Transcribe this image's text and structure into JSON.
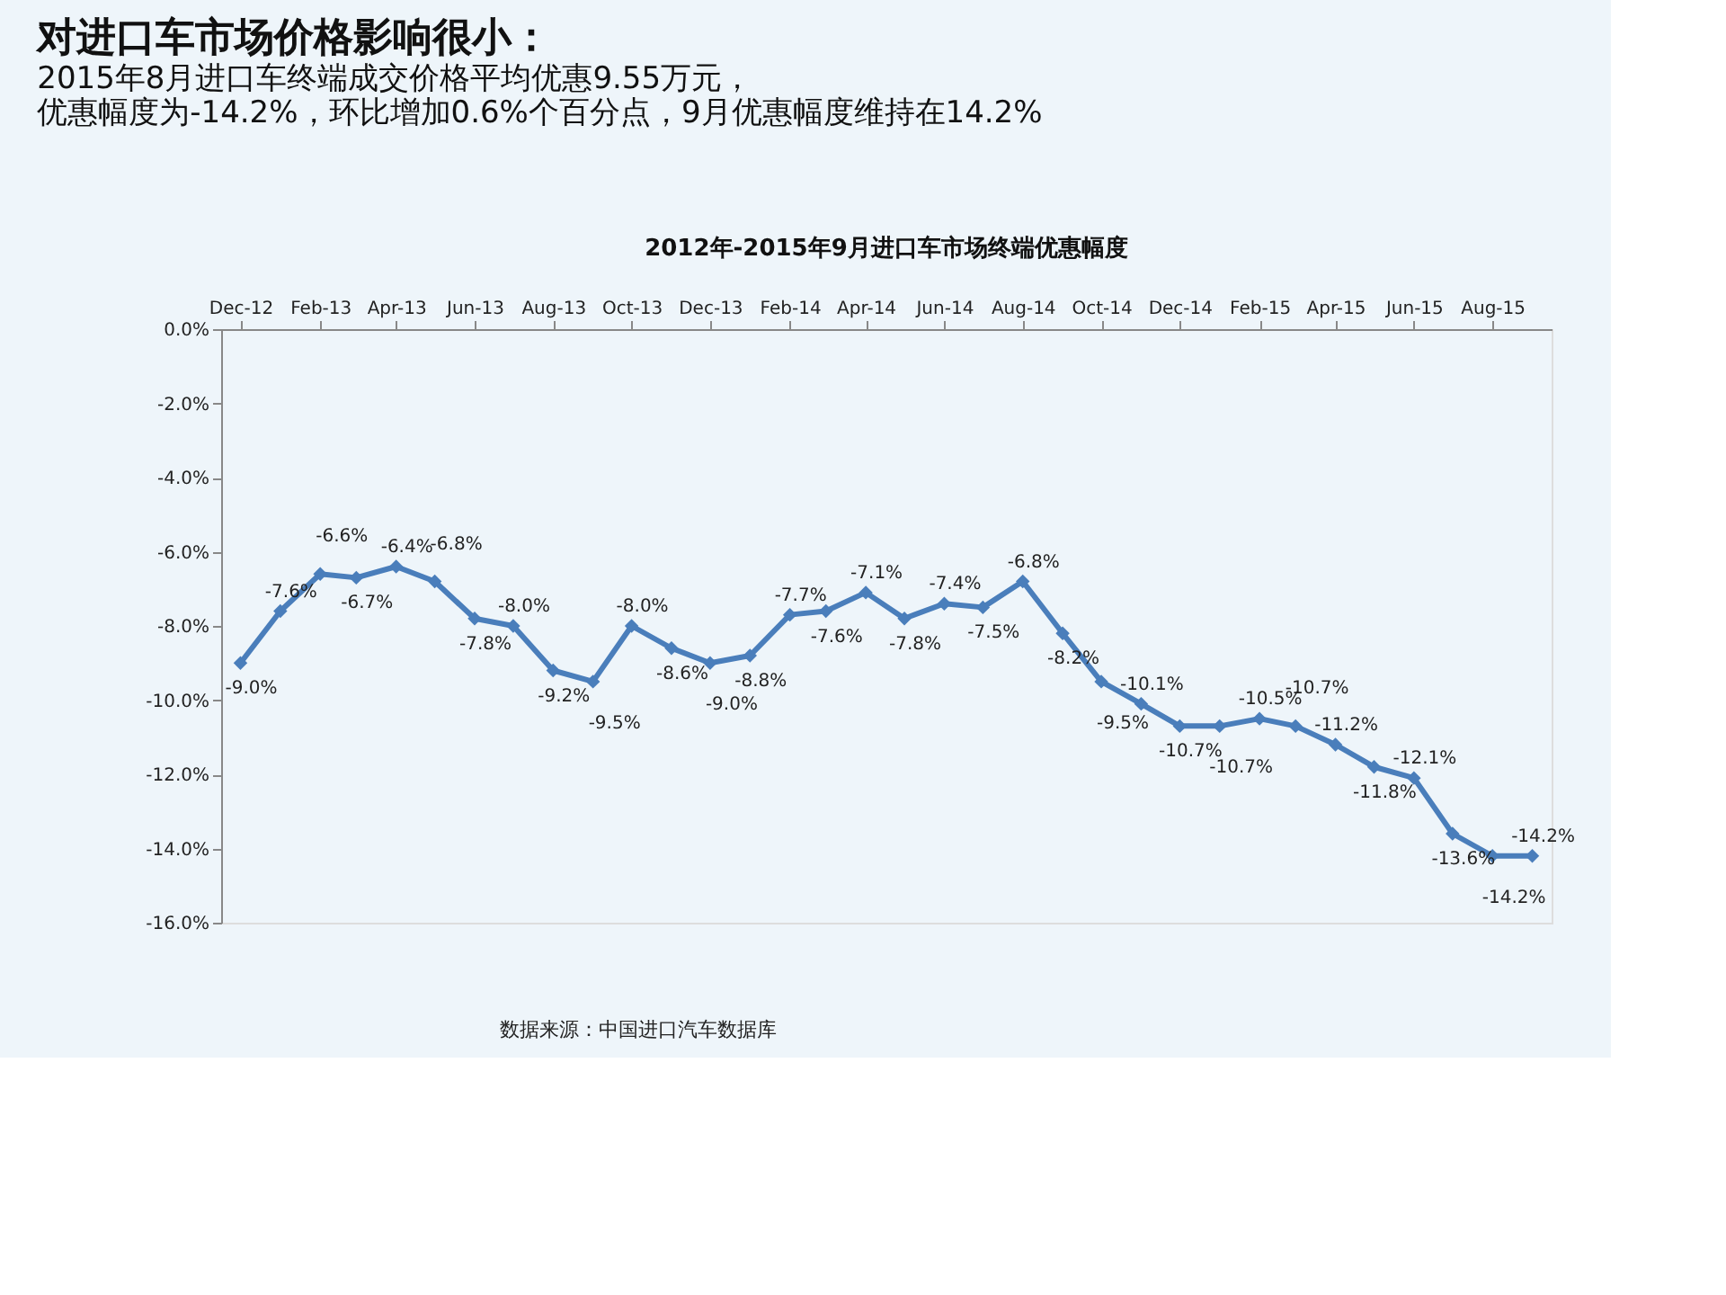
{
  "chart_data": {
    "type": "line",
    "title": "对进口车市场价格影响很小：",
    "subtitle": "2015年8月进口车终端成交价格平均优惠9.55万元，优惠幅度为-14.2%，环比增加0.6%个百分点，9月优惠幅度维持在14.2%",
    "annotations": [
      "2012年-2015年9月进口车市场终端优惠幅度",
      "数据来源：中国进口汽车数据库"
    ],
    "x": [
      "2012-12",
      "2013-01",
      "2013-02",
      "2013-03",
      "2013-04",
      "2013-05",
      "2013-06",
      "2013-07",
      "2013-08",
      "2013-09",
      "2013-10",
      "2013-11",
      "2013-12",
      "2014-01",
      "2014-02",
      "2014-03",
      "2014-04",
      "2014-05",
      "2014-06",
      "2014-07",
      "2014-08",
      "2014-09",
      "2014-10",
      "2014-11",
      "2014-12",
      "2015-01",
      "2015-02",
      "2015-03",
      "2015-04",
      "2015-05",
      "2015-06",
      "2015-07",
      "2015-08",
      "2015-09"
    ],
    "series": [
      {
        "color": "#4a7ebb",
        "values": [
          -9.0,
          -7.6,
          -6.6,
          -6.7,
          -6.4,
          -6.8,
          -7.8,
          -8.0,
          -9.2,
          -9.5,
          -8.0,
          -8.6,
          -9.0,
          -8.8,
          -7.7,
          -7.6,
          -7.1,
          -7.8,
          -7.4,
          -7.5,
          -6.8,
          -8.2,
          -9.5,
          -10.1,
          -10.7,
          -10.7,
          -10.5,
          -10.7,
          -11.2,
          -11.8,
          -12.1,
          -13.6,
          -14.2,
          -14.2
        ],
        "value_labels": [
          "-9.0%",
          "-7.6%",
          "-6.6%",
          "-6.7%",
          "-6.4%",
          "-6.8%",
          "-7.8%",
          "-8.0%",
          "-9.2%",
          "-9.5%",
          "-8.0%",
          "-8.6%",
          "-9.0%",
          "-8.8%",
          "-7.7%",
          "-7.6%",
          "-7.1%",
          "-7.8%",
          "-7.4%",
          "-7.5%",
          "-6.8%",
          "-8.2%",
          "-9.5%",
          "-10.1%",
          "-10.7%",
          "-10.7%",
          "-10.5%",
          "-10.7%",
          "-11.2%",
          "-11.8%",
          "-12.1%",
          "-13.6%",
          "-14.2%",
          "-14.2%"
        ]
      }
    ],
    "xlim": [
      "2012-11-16",
      "2015-09-16"
    ],
    "xticks": [
      {
        "value": "2012-12",
        "label": "Dec-12"
      },
      {
        "value": "2013-02",
        "label": "Feb-13"
      },
      {
        "value": "2013-04",
        "label": "Apr-13"
      },
      {
        "value": "2013-06",
        "label": "Jun-13"
      },
      {
        "value": "2013-08",
        "label": "Aug-13"
      },
      {
        "value": "2013-10",
        "label": "Oct-13"
      },
      {
        "value": "2013-12",
        "label": "Dec-13"
      },
      {
        "value": "2014-02",
        "label": "Feb-14"
      },
      {
        "value": "2014-04",
        "label": "Apr-14"
      },
      {
        "value": "2014-06",
        "label": "Jun-14"
      },
      {
        "value": "2014-08",
        "label": "Aug-14"
      },
      {
        "value": "2014-10",
        "label": "Oct-14"
      },
      {
        "value": "2014-12",
        "label": "Dec-14"
      },
      {
        "value": "2015-02",
        "label": "Feb-15"
      },
      {
        "value": "2015-04",
        "label": "Apr-15"
      },
      {
        "value": "2015-06",
        "label": "Jun-15"
      },
      {
        "value": "2015-08",
        "label": "Aug-15"
      }
    ],
    "ylim": [
      -16,
      0
    ],
    "yticks": [
      {
        "value": 0,
        "label": "0.0%"
      },
      {
        "value": -2,
        "label": "-2.0%"
      },
      {
        "value": -4,
        "label": "-4.0%"
      },
      {
        "value": -6,
        "label": "-6.0%"
      },
      {
        "value": -8,
        "label": "-8.0%"
      },
      {
        "value": -10,
        "label": "-10.0%"
      },
      {
        "value": -12,
        "label": "-12.0%"
      },
      {
        "value": -14,
        "label": "-14.0%"
      },
      {
        "value": -16,
        "label": "-16.0%"
      }
    ],
    "grid": false,
    "marker": "diamond",
    "line_style": "solid"
  }
}
